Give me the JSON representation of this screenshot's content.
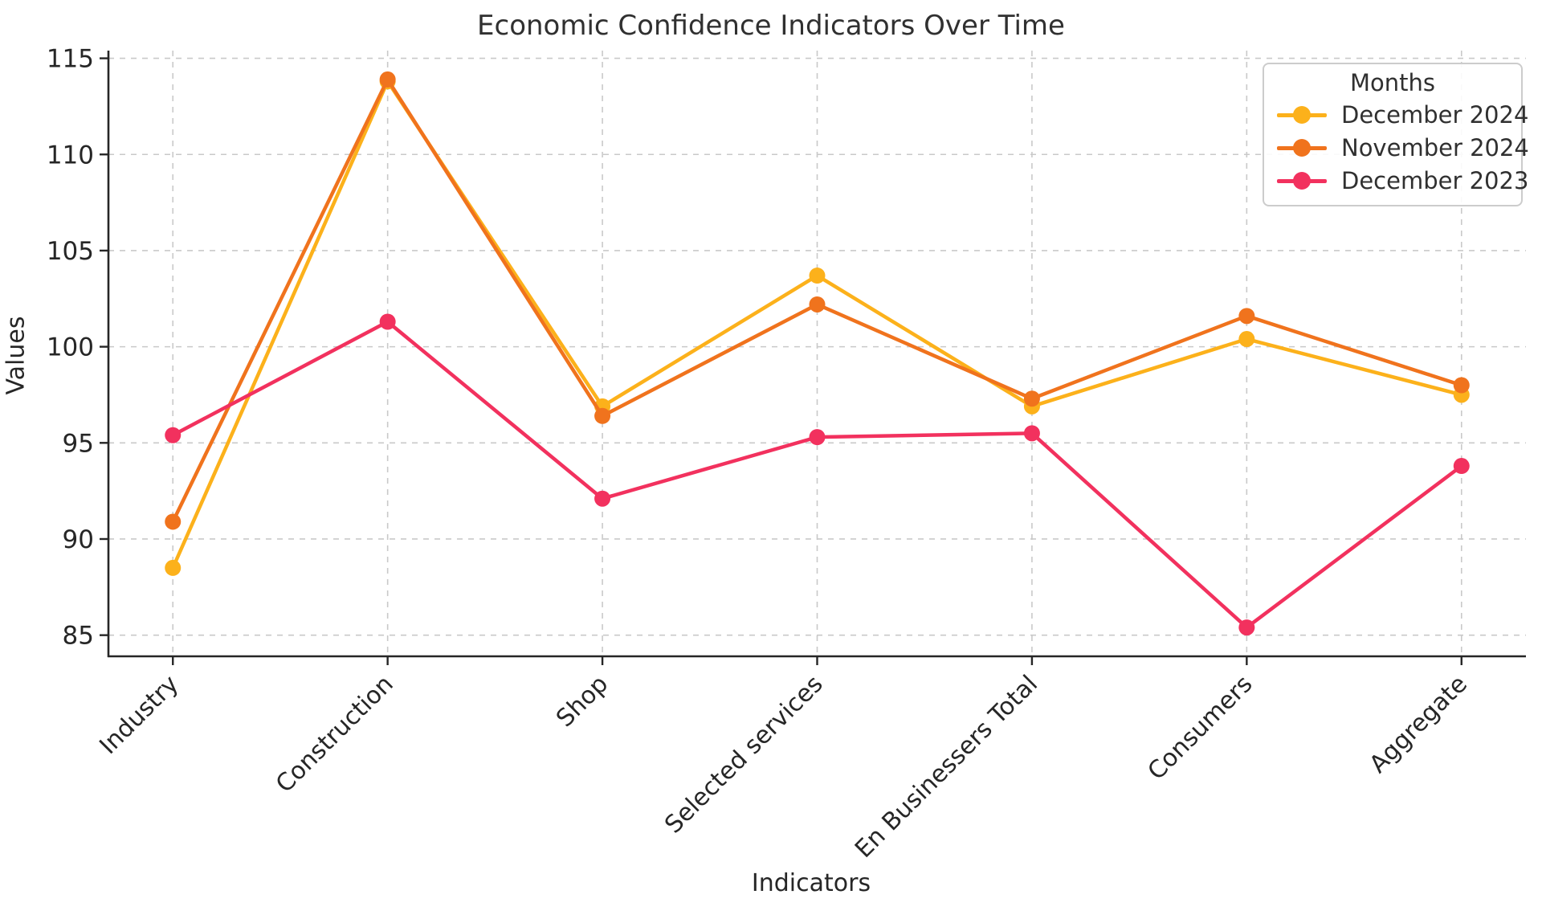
{
  "title": "Economic Confidence Indicators Over Time",
  "chart_data": {
    "type": "line",
    "title": "Economic Confidence Indicators Over Time",
    "xlabel": "Indicators",
    "ylabel": "Values",
    "categories": [
      "Industry",
      "Construction",
      "Shop",
      "Selected services",
      "En Businessers Total",
      "Consumers",
      "Aggregate"
    ],
    "series": [
      {
        "name": "December 2024",
        "color": "#FCB11B",
        "values": [
          88.5,
          113.8,
          96.9,
          103.7,
          96.9,
          100.4,
          97.5
        ]
      },
      {
        "name": "November 2024",
        "color": "#F0731D",
        "values": [
          90.9,
          113.9,
          96.4,
          102.2,
          97.3,
          101.6,
          98.0
        ]
      },
      {
        "name": "December 2023",
        "color": "#F2315E",
        "values": [
          95.4,
          101.3,
          92.1,
          95.3,
          95.5,
          85.4,
          93.8
        ]
      }
    ],
    "yticks": [
      85,
      90,
      95,
      100,
      105,
      110,
      115
    ],
    "ylim": [
      83.9,
      115.4
    ],
    "grid": true,
    "legend": {
      "title": "Months",
      "position": "top-right"
    }
  },
  "style_colors": {
    "axis": "#262626",
    "grid": "#c9c9c9",
    "tick_text": "#262626"
  }
}
